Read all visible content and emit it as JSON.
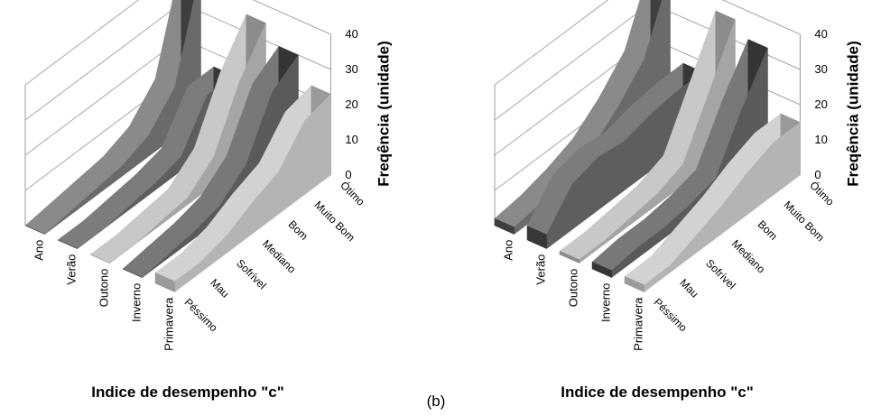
{
  "caption": "(b)",
  "colors": {
    "background": "#ffffff",
    "gridline": "#a6a6a6",
    "series_front": [
      "#6a6a6a",
      "#5e5e5e",
      "#a5a5a5",
      "#5a5a5a",
      "#b4b4b4"
    ],
    "series_top": [
      "#8a8a8a",
      "#7c7c7c",
      "#c8c8c8",
      "#787878",
      "#d2d2d2"
    ],
    "series_side": [
      "#3e3e3e",
      "#383838",
      "#8c8c8c",
      "#353535",
      "#9a9a9a"
    ]
  },
  "chart_data": [
    {
      "type": "3d-area",
      "title": "",
      "xlabel": "Indice de desempenho \"c\"",
      "zlabel": "Freqência (unidade)",
      "categories": [
        "Péssimo",
        "Mau",
        "Sofrível",
        "Mediano",
        "Bom",
        "Muito Bom",
        "Ótimo"
      ],
      "series": [
        {
          "name": "Ano",
          "values": [
            0,
            1,
            2,
            3,
            6,
            14,
            42
          ]
        },
        {
          "name": "Verão",
          "values": [
            0,
            0,
            1,
            2,
            4,
            16,
            16
          ]
        },
        {
          "name": "Outono",
          "values": [
            0,
            0,
            1,
            2,
            8,
            24,
            35
          ]
        },
        {
          "name": "Inverno",
          "values": [
            0,
            1,
            2,
            4,
            10,
            25,
            30
          ]
        },
        {
          "name": "Primavera",
          "values": [
            3,
            3,
            5,
            9,
            12,
            21,
            23
          ]
        }
      ],
      "zticks": [
        0,
        10,
        20,
        30,
        40
      ],
      "zlim": [
        0,
        40
      ],
      "grid": true
    },
    {
      "type": "3d-area",
      "title": "",
      "xlabel": "Indice de desempenho \"c\"",
      "zlabel": "Freqência (unidade)",
      "categories": [
        "Péssimo",
        "Mau",
        "Sofrível",
        "Mediano",
        "Bom",
        "Muito Bom",
        "Ótimo"
      ],
      "series": [
        {
          "name": "Ano",
          "values": [
            2,
            3,
            5,
            8,
            14,
            22,
            41
          ]
        },
        {
          "name": "Verão",
          "values": [
            4,
            13,
            15,
            14,
            16,
            17,
            17
          ]
        },
        {
          "name": "Outono",
          "values": [
            1,
            1,
            2,
            3,
            6,
            21,
            36
          ]
        },
        {
          "name": "Inverno",
          "values": [
            2,
            3,
            3,
            4,
            6,
            20,
            32
          ]
        },
        {
          "name": "Primavera",
          "values": [
            2,
            2,
            5,
            8,
            12,
            15,
            15
          ]
        }
      ],
      "zticks": [
        0,
        10,
        20,
        30,
        40
      ],
      "zlim": [
        0,
        40
      ],
      "grid": true
    }
  ]
}
